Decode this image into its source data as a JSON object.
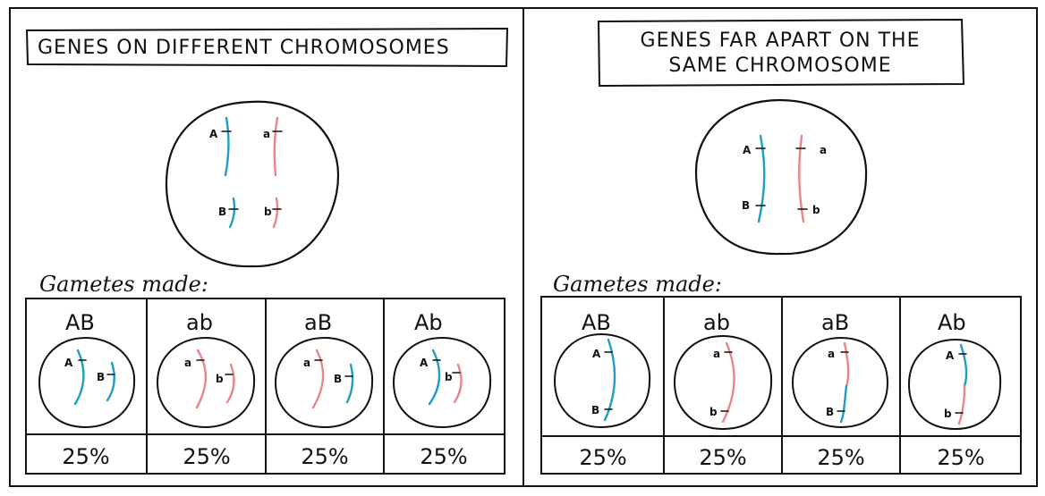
{
  "left_panel": {
    "title": "GENES ON DIFFERENT CHROMOSOMES",
    "gametes_label": "Gametes made:",
    "parent_alleles": [
      "A",
      "a",
      "B",
      "b"
    ],
    "gametes": [
      {
        "genotype": "AB",
        "alleles": [
          "A",
          "B"
        ],
        "percent": "25%"
      },
      {
        "genotype": "ab",
        "alleles": [
          "a",
          "b"
        ],
        "percent": "25%"
      },
      {
        "genotype": "aB",
        "alleles": [
          "a",
          "B"
        ],
        "percent": "25%"
      },
      {
        "genotype": "Ab",
        "alleles": [
          "A",
          "b"
        ],
        "percent": "25%"
      }
    ]
  },
  "right_panel": {
    "title_line1": "GENES FAR APART ON THE",
    "title_line2": "SAME CHROMOSOME",
    "gametes_label": "Gametes made:",
    "parent_alleles": [
      "A",
      "a",
      "B",
      "b"
    ],
    "gametes": [
      {
        "genotype": "AB",
        "alleles": [
          "A",
          "B"
        ],
        "percent": "25%"
      },
      {
        "genotype": "ab",
        "alleles": [
          "a",
          "b"
        ],
        "percent": "25%"
      },
      {
        "genotype": "aB",
        "alleles": [
          "a",
          "B"
        ],
        "percent": "25%"
      },
      {
        "genotype": "Ab",
        "alleles": [
          "A",
          "b"
        ],
        "percent": "25%"
      }
    ]
  },
  "colors": {
    "chromosome_blue": "#1f9fc0",
    "chromosome_red": "#ea8585",
    "ink": "#111111"
  }
}
